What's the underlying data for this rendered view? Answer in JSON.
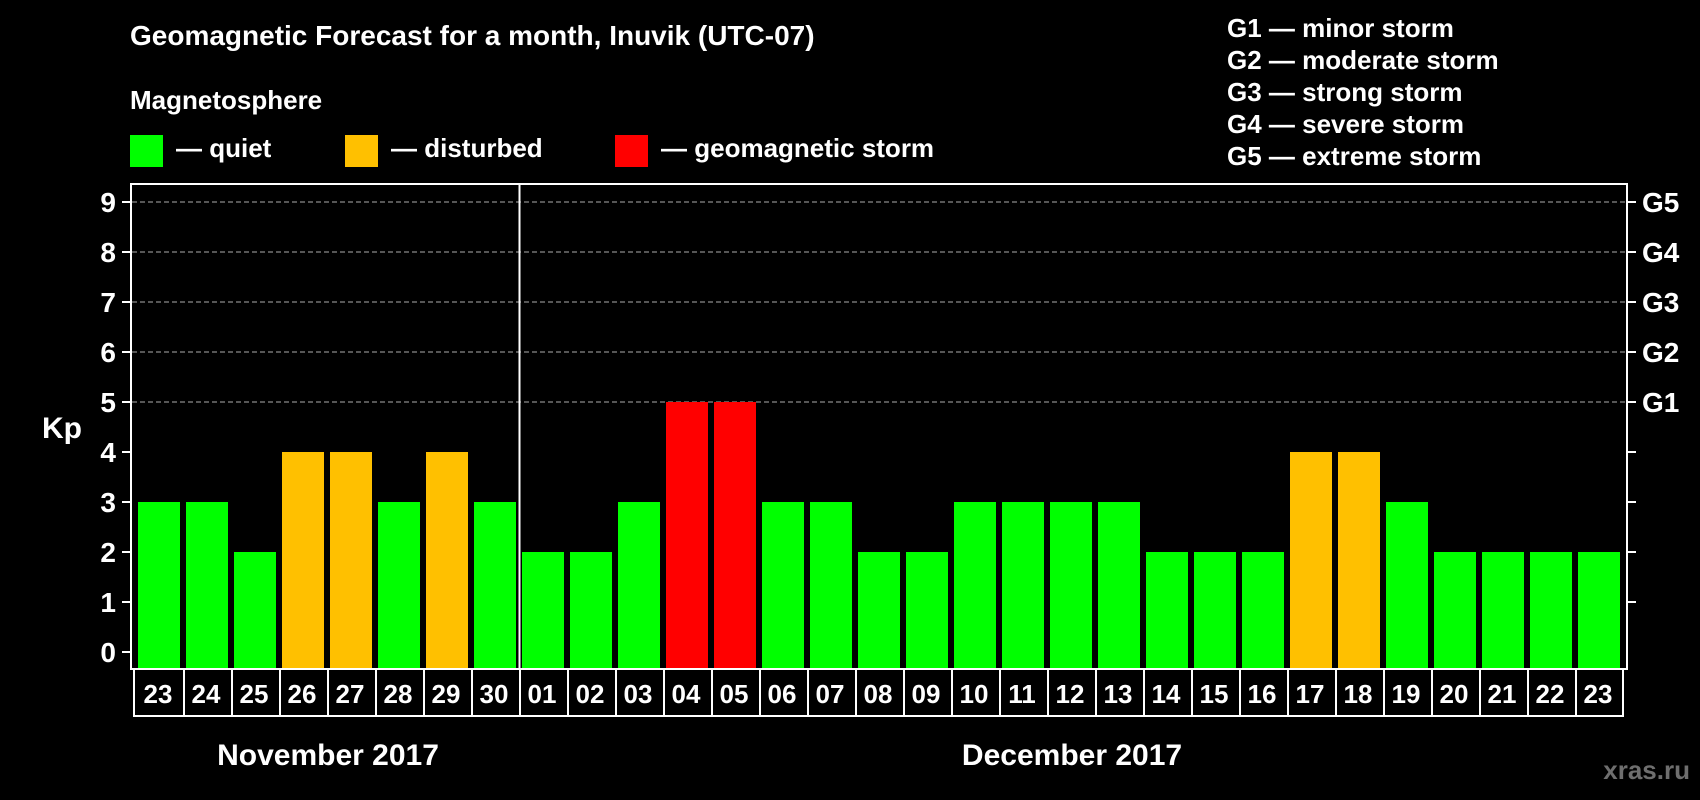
{
  "title": "Geomagnetic Forecast for a month, Inuvik (UTC-07)",
  "legend": {
    "heading": "Magnetosphere",
    "items": [
      {
        "label": "— quiet",
        "color": "#00ff00"
      },
      {
        "label": "— disturbed",
        "color": "#ffc000"
      },
      {
        "label": "— geomagnetic storm",
        "color": "#ff0000"
      }
    ]
  },
  "storm_levels": [
    "G1 — minor storm",
    "G2 — moderate storm",
    "G3 — strong storm",
    "G4 — severe storm",
    "G5 — extreme storm"
  ],
  "watermark": "xras.ru",
  "chart_data": {
    "type": "bar",
    "ylabel": "Kp",
    "ylim": [
      0,
      9
    ],
    "yticks": [
      0,
      1,
      2,
      3,
      4,
      5,
      6,
      7,
      8,
      9
    ],
    "right_ticks": [
      {
        "kp": 5,
        "label": "G1"
      },
      {
        "kp": 6,
        "label": "G2"
      },
      {
        "kp": 7,
        "label": "G3"
      },
      {
        "kp": 8,
        "label": "G4"
      },
      {
        "kp": 9,
        "label": "G5"
      }
    ],
    "grid": "dashed at Kp 5-9",
    "categories": [
      "23",
      "24",
      "25",
      "26",
      "27",
      "28",
      "29",
      "30",
      "01",
      "02",
      "03",
      "04",
      "05",
      "06",
      "07",
      "08",
      "09",
      "10",
      "11",
      "12",
      "13",
      "14",
      "15",
      "16",
      "17",
      "18",
      "19",
      "20",
      "21",
      "22",
      "23"
    ],
    "values": [
      3,
      3,
      2,
      4,
      4,
      3,
      4,
      3,
      2,
      2,
      3,
      5,
      5,
      3,
      3,
      2,
      2,
      3,
      3,
      3,
      3,
      2,
      2,
      2,
      4,
      4,
      3,
      2,
      2,
      2,
      2
    ],
    "status": [
      "quiet",
      "quiet",
      "quiet",
      "disturbed",
      "disturbed",
      "quiet",
      "disturbed",
      "quiet",
      "quiet",
      "quiet",
      "quiet",
      "storm",
      "storm",
      "quiet",
      "quiet",
      "quiet",
      "quiet",
      "quiet",
      "quiet",
      "quiet",
      "quiet",
      "quiet",
      "quiet",
      "quiet",
      "disturbed",
      "disturbed",
      "quiet",
      "quiet",
      "quiet",
      "quiet",
      "quiet"
    ],
    "colors": {
      "quiet": "#00ff00",
      "disturbed": "#ffc000",
      "storm": "#ff0000"
    },
    "months": [
      {
        "label": "November 2017",
        "start": 0,
        "end": 7
      },
      {
        "label": "December 2017",
        "start": 8,
        "end": 30
      }
    ]
  }
}
